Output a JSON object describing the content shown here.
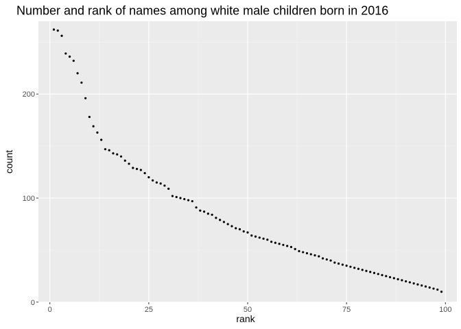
{
  "chart_data": {
    "type": "scatter",
    "title": "Number and rank of names among white male children born in 2016",
    "xlabel": "rank",
    "ylabel": "count",
    "xlim": [
      -2.9,
      102.9
    ],
    "ylim": [
      -0.15,
      270.0
    ],
    "x_ticks": [
      0,
      25,
      50,
      75,
      100
    ],
    "x_tick_labels": [
      "0",
      "25",
      "50",
      "75",
      "100"
    ],
    "y_ticks": [
      0,
      100,
      200
    ],
    "y_tick_labels": [
      "0",
      "100",
      "200"
    ],
    "grid": true,
    "legend": "none",
    "colors": {
      "panel": "#ebebeb",
      "grid_major": "#ffffff",
      "point": "#000000"
    },
    "x": [
      1,
      2,
      3,
      4,
      5,
      6,
      7,
      8,
      9,
      10,
      11,
      12,
      13,
      14,
      15,
      16,
      17,
      18,
      19,
      20,
      21,
      22,
      23,
      24,
      25,
      26,
      27,
      28,
      29,
      30,
      31,
      32,
      33,
      34,
      35,
      36,
      37,
      38,
      39,
      40,
      41,
      42,
      43,
      44,
      45,
      46,
      47,
      48,
      49,
      50,
      51,
      52,
      53,
      54,
      55,
      56,
      57,
      58,
      59,
      60,
      61,
      62,
      63,
      64,
      65,
      66,
      67,
      68,
      69,
      70,
      71,
      72,
      73,
      74,
      75,
      76,
      77,
      78,
      79,
      80,
      81,
      82,
      83,
      84,
      85,
      86,
      87,
      88,
      89,
      90,
      91,
      92,
      93,
      94,
      95,
      96,
      97,
      98,
      99
    ],
    "y": [
      262,
      261,
      256,
      239,
      236,
      232,
      220,
      211,
      196,
      178,
      169,
      163,
      156,
      147,
      146,
      143,
      142,
      140,
      136,
      133,
      129,
      128,
      127,
      124,
      120,
      117,
      115,
      114,
      112,
      109,
      102,
      101,
      100,
      99,
      98,
      97,
      91,
      88,
      87,
      85,
      84,
      81,
      79,
      77,
      75,
      73,
      71,
      70,
      68,
      67,
      64,
      63,
      62,
      61,
      60,
      58,
      57,
      56,
      55,
      54,
      53,
      51,
      49,
      48,
      47,
      46,
      45,
      44,
      42,
      41,
      40,
      38,
      37,
      36,
      35,
      34,
      33,
      32,
      31,
      30,
      29,
      28,
      27,
      26,
      25,
      24,
      23,
      22,
      21,
      20,
      19,
      18,
      17,
      16,
      15,
      14,
      13,
      12,
      10
    ]
  }
}
